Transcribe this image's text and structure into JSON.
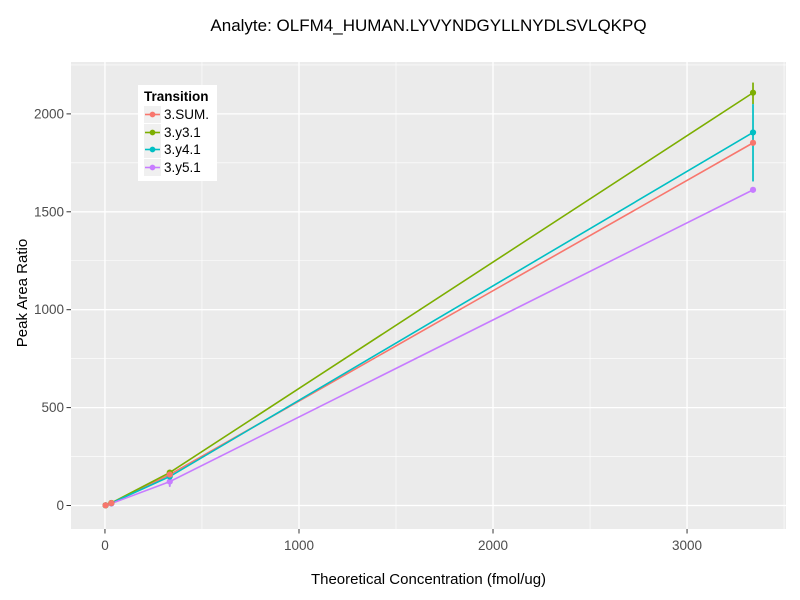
{
  "chart_data": {
    "type": "line",
    "title": "Analyte: OLFM4_HUMAN.LYVYNDGYLLNYDLSVLQKPQ",
    "xlabel": "Theoretical Concentration (fmol/ug)",
    "ylabel": "Peak Area Ratio",
    "legend_title": "Transition",
    "legend_position": "inside top-left",
    "grid": true,
    "x_ticks": [
      0,
      1000,
      2000,
      3000
    ],
    "x_minor_ticks": [
      500,
      1500,
      2500,
      3500
    ],
    "y_ticks": [
      0,
      500,
      1000,
      1500,
      2000
    ],
    "y_minor_ticks": [
      250,
      750,
      1250,
      1750,
      2250
    ],
    "xlim": [
      -175,
      3510
    ],
    "ylim": [
      -120,
      2265
    ],
    "series": [
      {
        "name": "3.SUM.",
        "color": "#F8766D",
        "x": [
          3.3,
          33,
          334,
          3340
        ],
        "y": [
          1,
          12,
          158,
          1852
        ],
        "error_bars": []
      },
      {
        "name": "3.y3.1",
        "color": "#7CAE00",
        "x": [
          3.3,
          33,
          334,
          3340
        ],
        "y": [
          1,
          13,
          168,
          2108
        ],
        "error_bars": [
          {
            "x": 3340,
            "low": 2050,
            "high": 2160
          }
        ]
      },
      {
        "name": "3.y4.1",
        "color": "#00BFC4",
        "x": [
          3.3,
          33,
          334,
          3340
        ],
        "y": [
          1,
          12,
          148,
          1905
        ],
        "error_bars": [
          {
            "x": 3340,
            "low": 1655,
            "high": 2050
          },
          {
            "x": 334,
            "low": 100,
            "high": 160
          }
        ]
      },
      {
        "name": "3.y5.1",
        "color": "#C77CFF",
        "x": [
          3.3,
          33,
          334,
          3340
        ],
        "y": [
          1,
          10,
          122,
          1612
        ],
        "error_bars": [
          {
            "x": 334,
            "low": 95,
            "high": 135
          }
        ]
      }
    ],
    "style": {
      "panel_bg": "#EBEBEB",
      "grid_color": "#FFFFFF",
      "tick_color": "#333333",
      "tick_label_color": "#4D4D4D",
      "text_color": "#000000",
      "legend_key_bg": "#F0F0F0"
    }
  }
}
